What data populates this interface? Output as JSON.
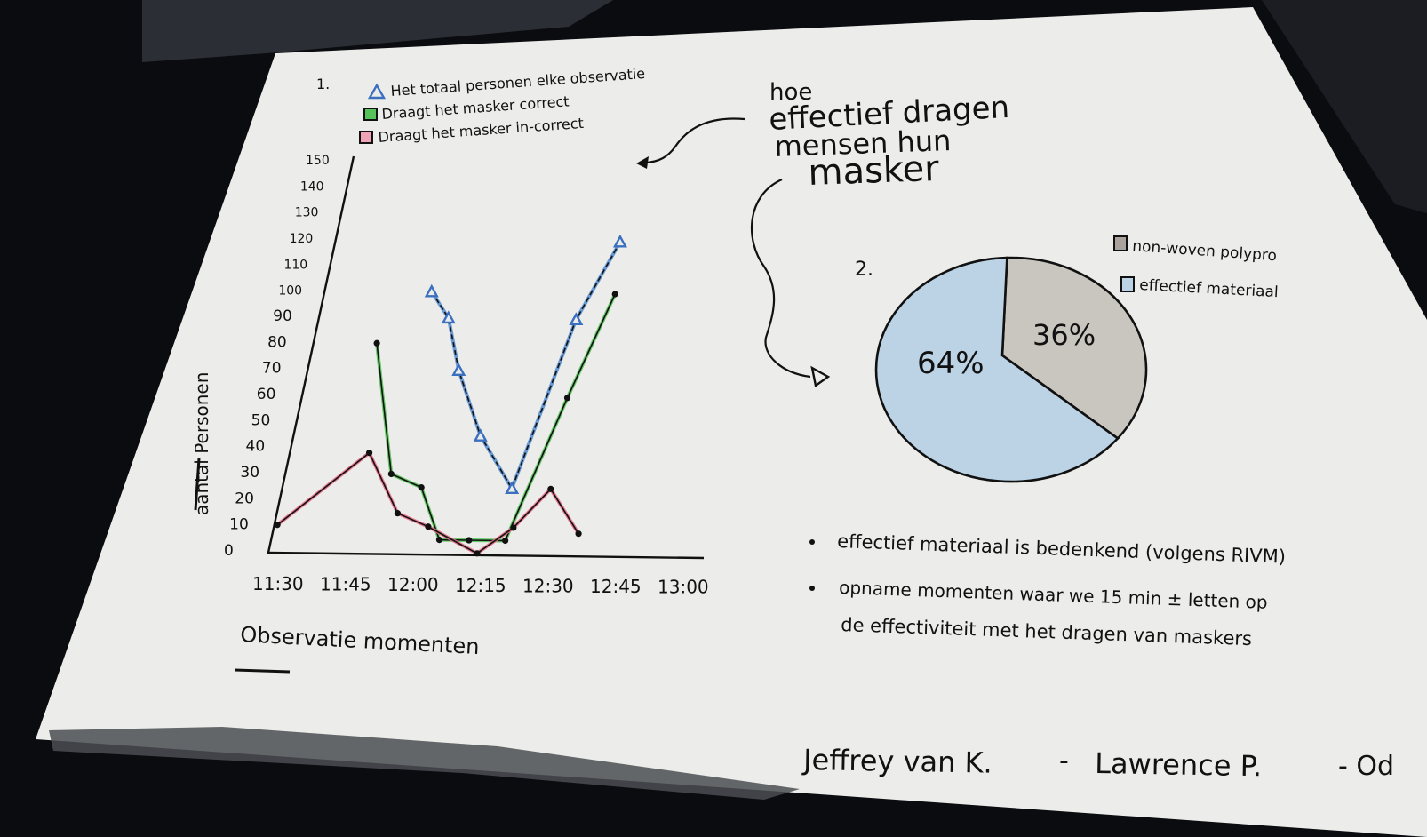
{
  "colors": {
    "background": "#0b0c10",
    "paper": "#ecedea",
    "ink": "#111111",
    "total_series": "#5b8fd0",
    "correct_series": "#57c25a",
    "incorrect_series": "#e46b86",
    "pie_effective": "#bcd3e6",
    "pie_nonwoven": "#c9c5bf"
  },
  "chart1": {
    "number": "1.",
    "legend": {
      "total": "Het totaal personen elke observatie",
      "correct": "Draagt het masker correct",
      "incorrect": "Draagt het masker in-correct"
    }
  },
  "chart2": {
    "number": "2.",
    "legend": {
      "nonwoven": "non-woven polypro",
      "effective": "effectief materiaal"
    }
  },
  "title": {
    "line1": "hoe",
    "line2": "effectief dragen",
    "line3": "mensen hun",
    "line4": "masker"
  },
  "notes": [
    "effectief materiaal is bedenkend (volgens RIVM)",
    "opname momenten waar we 15 min ± letten op",
    "de effectiviteit met het dragen van maskers"
  ],
  "signature": {
    "name1": "Jeffrey van K.",
    "dash1": "-",
    "name2": "Lawrence P.",
    "dash2": "- Od"
  },
  "chart_data": [
    {
      "type": "line",
      "title": "",
      "xlabel": "Observatie momenten",
      "ylabel": "aantal Personen",
      "categories": [
        "11:30",
        "11:45",
        "12:00",
        "12:15",
        "12:30",
        "12:45",
        "13:00"
      ],
      "ylim": [
        0,
        150
      ],
      "yticks": [
        0,
        10,
        20,
        30,
        40,
        50,
        60,
        70,
        80,
        90,
        100,
        110,
        120,
        130,
        140,
        150
      ],
      "series": [
        {
          "name": "Het totaal personen elke observatie",
          "color": "#5b8fd0",
          "marker": "triangle",
          "x": [
            11.75,
            12.1,
            12.4,
            12.9,
            13.5,
            14.2,
            14.8
          ],
          "y": [
            100,
            90,
            70,
            45,
            25,
            90,
            120
          ]
        },
        {
          "name": "Draagt het masker correct",
          "color": "#57c25a",
          "marker": "dot",
          "x": [
            11.0,
            11.6,
            12.1,
            12.5,
            12.95,
            13.5,
            14.2,
            14.8
          ],
          "y": [
            80,
            30,
            25,
            5,
            5,
            5,
            60,
            100
          ]
        },
        {
          "name": "Draagt het masker in-correct",
          "color": "#e46b86",
          "marker": "dot",
          "x": [
            10.0,
            11.2,
            11.8,
            12.3,
            13.1,
            13.6,
            14.1,
            14.6
          ],
          "y": [
            10,
            38,
            15,
            10,
            0,
            10,
            25,
            8
          ]
        }
      ],
      "grid": false,
      "legend": "top-left"
    },
    {
      "type": "pie",
      "title": "",
      "labels": [
        "effectief materiaal",
        "non-woven polypro"
      ],
      "values": [
        64,
        36
      ],
      "value_labels": [
        "64%",
        "36%"
      ],
      "colors": [
        "#bcd3e6",
        "#c9c5bf"
      ],
      "legend": "top-right"
    }
  ]
}
